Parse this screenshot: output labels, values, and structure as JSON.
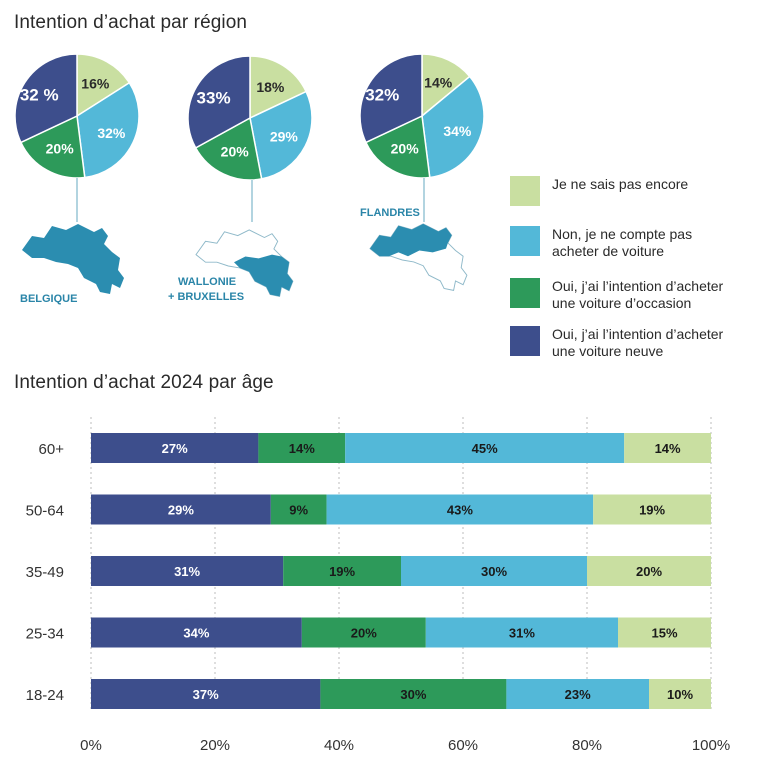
{
  "colors": {
    "neuve": "#3d4e8c",
    "occasion": "#2d9a5a",
    "non": "#53b8d8",
    "ne_sais_pas": "#c9dfa1",
    "map": "#2b8db0",
    "map_text": "#2a85a8"
  },
  "region_section": {
    "title": "Intention d’achat par région"
  },
  "age_section": {
    "title": "Intention d’achat 2024 par âge"
  },
  "legend": [
    {
      "key": "ne_sais_pas",
      "label": "Je ne sais pas encore"
    },
    {
      "key": "non",
      "label": "Non, je ne compte pas\nacheter de voiture"
    },
    {
      "key": "occasion",
      "label": "Oui, j’ai l’intention d’acheter\nune voiture d’occasion"
    },
    {
      "key": "neuve",
      "label": "Oui, j’ai l’intention d’acheter\nune voiture neuve"
    }
  ],
  "chart_data": [
    {
      "type": "pie",
      "region": "BELGIQUE",
      "slices": [
        {
          "key": "ne_sais_pas",
          "value": 16,
          "label": "16%"
        },
        {
          "key": "non",
          "value": 32,
          "label": "32%"
        },
        {
          "key": "occasion",
          "value": 20,
          "label": "20%"
        },
        {
          "key": "neuve",
          "value": 32,
          "label": "32 %"
        }
      ]
    },
    {
      "type": "pie",
      "region": "WALLONIE + BRUXELLES",
      "region_lines": [
        "WALLONIE",
        "+ BRUXELLES"
      ],
      "slices": [
        {
          "key": "ne_sais_pas",
          "value": 18,
          "label": "18%"
        },
        {
          "key": "non",
          "value": 29,
          "label": "29%"
        },
        {
          "key": "occasion",
          "value": 20,
          "label": "20%"
        },
        {
          "key": "neuve",
          "value": 33,
          "label": "33%"
        }
      ]
    },
    {
      "type": "pie",
      "region": "FLANDRES",
      "slices": [
        {
          "key": "ne_sais_pas",
          "value": 14,
          "label": "14%"
        },
        {
          "key": "non",
          "value": 34,
          "label": "34%"
        },
        {
          "key": "occasion",
          "value": 20,
          "label": "20%"
        },
        {
          "key": "neuve",
          "value": 32,
          "label": "32%"
        }
      ]
    },
    {
      "type": "bar",
      "orientation": "horizontal",
      "stacked": true,
      "categories": [
        "60+",
        "50-64",
        "35-49",
        "25-34",
        "18-24"
      ],
      "series": [
        {
          "key": "neuve",
          "values": [
            27,
            29,
            31,
            34,
            37
          ]
        },
        {
          "key": "occasion",
          "values": [
            14,
            9,
            19,
            20,
            30
          ]
        },
        {
          "key": "non",
          "values": [
            45,
            43,
            30,
            31,
            23
          ]
        },
        {
          "key": "ne_sais_pas",
          "values": [
            14,
            19,
            20,
            15,
            10
          ]
        }
      ],
      "xlim": [
        0,
        100
      ],
      "xticks": [
        "0%",
        "20%",
        "40%",
        "60%",
        "80%",
        "100%"
      ],
      "grid": true
    }
  ]
}
